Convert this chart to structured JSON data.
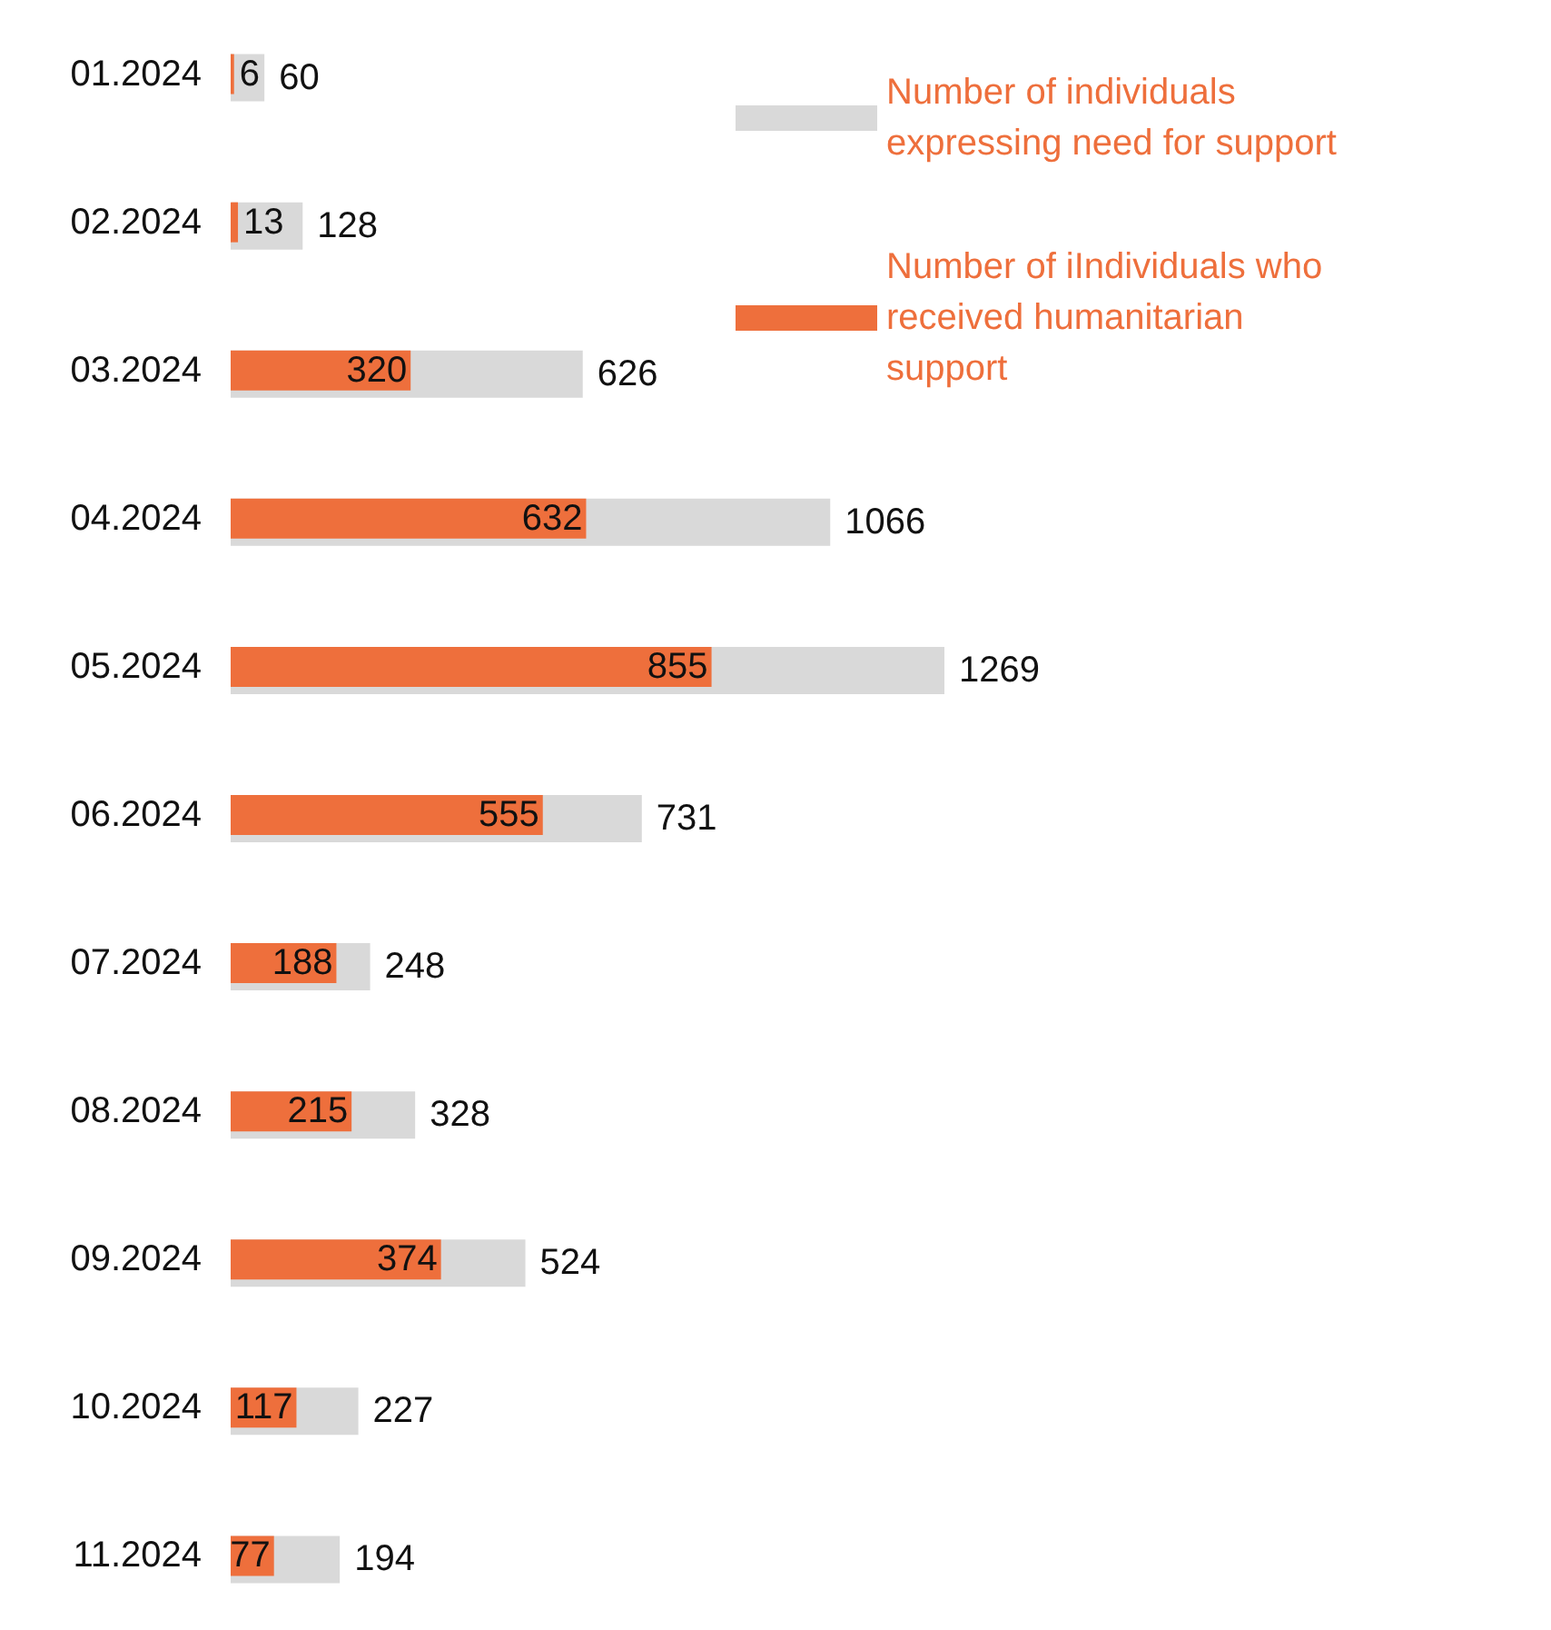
{
  "chart_data": {
    "type": "bar",
    "orientation": "horizontal",
    "categories": [
      "01.2024",
      "02.2024",
      "03.2024",
      "04.2024",
      "05.2024",
      "06.2024",
      "07.2024",
      "08.2024",
      "09.2024",
      "10.2024",
      "11.2024"
    ],
    "series": [
      {
        "name": "Number of individuals expressing need for support",
        "color": "#d9d9d9",
        "values": [
          60,
          128,
          626,
          1066,
          1269,
          731,
          248,
          328,
          524,
          227,
          194
        ]
      },
      {
        "name": "Number of iIndividuals who received humanitarian support",
        "color": "#ee6f3c",
        "values": [
          6,
          13,
          320,
          632,
          855,
          555,
          188,
          215,
          374,
          117,
          77
        ]
      }
    ],
    "data_labels": true,
    "legend": "top right"
  }
}
